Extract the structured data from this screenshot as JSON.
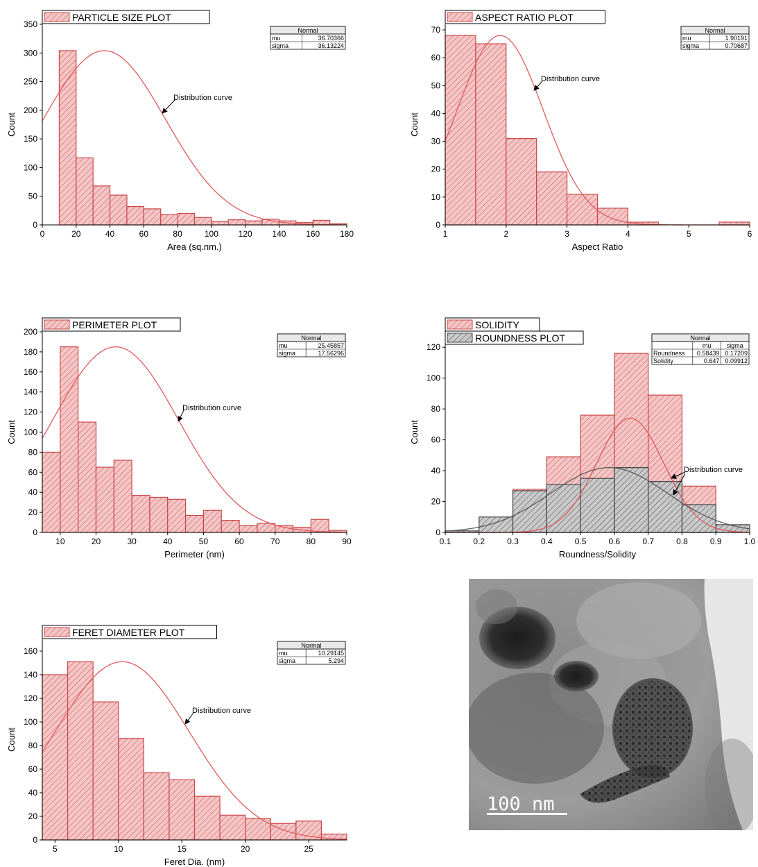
{
  "colors": {
    "bar_fill": "#f4c6c6",
    "bar_stroke": "#c8484a",
    "hatch": "#d76a6c",
    "curve": "#e05a5c",
    "gray_fill": "#c9c9c9",
    "gray_stroke": "#444444",
    "gray_curve": "#5a5a5a"
  },
  "chart_data": [
    {
      "id": "particle-size",
      "type": "bar",
      "legend": [
        "PARTICLE SIZE PLOT"
      ],
      "xlabel": "Area (sq.nm.)",
      "ylabel": "Count",
      "xlim": [
        0,
        180
      ],
      "ylim": [
        0,
        350
      ],
      "xticks": [
        0,
        20,
        40,
        60,
        80,
        100,
        120,
        140,
        160,
        180
      ],
      "yticks": [
        0,
        50,
        100,
        150,
        200,
        250,
        300,
        350
      ],
      "bin_edges": [
        10,
        20,
        30,
        40,
        50,
        60,
        70,
        80,
        90,
        100,
        110,
        120,
        130,
        140,
        150,
        160,
        170,
        180
      ],
      "counts": [
        304,
        117,
        68,
        52,
        32,
        28,
        18,
        20,
        13,
        6,
        9,
        7,
        10,
        7,
        4,
        8,
        2
      ],
      "normal_fit": {
        "mu": 36.70366,
        "sigma": 36.13224,
        "peak": 304
      },
      "stats_table": {
        "header": "Normal",
        "rows": [
          [
            "mu",
            "36.70366"
          ],
          [
            "sigma",
            "36.13224"
          ]
        ]
      },
      "annotation": "Distribution curve"
    },
    {
      "id": "aspect-ratio",
      "type": "bar",
      "legend": [
        "ASPECT RATIO PLOT"
      ],
      "xlabel": "Aspect Ratio",
      "ylabel": "Count",
      "xlim": [
        1,
        6
      ],
      "ylim": [
        0,
        72
      ],
      "xticks": [
        1,
        2,
        3,
        4,
        5,
        6
      ],
      "yticks": [
        0,
        10,
        20,
        30,
        40,
        50,
        60,
        70
      ],
      "bin_edges": [
        1,
        1.5,
        2,
        2.5,
        3,
        3.5,
        4,
        4.5,
        5,
        5.5,
        6
      ],
      "counts": [
        68,
        65,
        31,
        19,
        11,
        6,
        1,
        0,
        0,
        1
      ],
      "normal_fit": {
        "mu": 1.90191,
        "sigma": 0.70687,
        "peak": 68
      },
      "stats_table": {
        "header": "Normal",
        "rows": [
          [
            "mu",
            "1.90191"
          ],
          [
            "sigma",
            "0.70687"
          ]
        ]
      },
      "annotation": "Distribution curve"
    },
    {
      "id": "perimeter",
      "type": "bar",
      "legend": [
        "PERIMETER PLOT"
      ],
      "xlabel": "Perimeter (nm)",
      "ylabel": "Count",
      "xlim": [
        5,
        90
      ],
      "ylim": [
        0,
        200
      ],
      "xticks": [
        10,
        20,
        30,
        40,
        50,
        60,
        70,
        80,
        90
      ],
      "yticks": [
        0,
        20,
        40,
        60,
        80,
        100,
        120,
        140,
        160,
        180,
        200
      ],
      "bin_edges": [
        5,
        10,
        15,
        20,
        25,
        30,
        35,
        40,
        45,
        50,
        55,
        60,
        65,
        70,
        75,
        80,
        85,
        90
      ],
      "counts": [
        80,
        185,
        110,
        65,
        72,
        37,
        35,
        33,
        17,
        22,
        12,
        7,
        9,
        7,
        5,
        13,
        2
      ],
      "normal_fit": {
        "mu": 25.45857,
        "sigma": 17.56296,
        "peak": 185
      },
      "stats_table": {
        "header": "Normal",
        "rows": [
          [
            "mu",
            "25.45857"
          ],
          [
            "sigma",
            "17.56296"
          ]
        ]
      },
      "annotation": "Distribution curve"
    },
    {
      "id": "roundness-solidity",
      "type": "bar",
      "legend": [
        "SOLIDITY",
        "ROUNDNESS PLOT"
      ],
      "xlabel": "Roundness/Solidity",
      "ylabel": "Count",
      "xlim": [
        0.1,
        1.0
      ],
      "ylim": [
        0,
        130
      ],
      "xticks": [
        0.1,
        0.2,
        0.3,
        0.4,
        0.5,
        0.6,
        0.7,
        0.8,
        0.9,
        1.0
      ],
      "xtick_labels": [
        "0.1",
        "0.2",
        "0.3",
        "0.4",
        "0.5",
        "0.6",
        "0.7",
        "0.8",
        "0.9",
        "1.0"
      ],
      "yticks": [
        0,
        20,
        40,
        60,
        80,
        100,
        120
      ],
      "bin_edges": [
        0.1,
        0.2,
        0.3,
        0.4,
        0.5,
        0.6,
        0.7,
        0.8,
        0.9,
        1.0
      ],
      "series": [
        {
          "name": "SOLIDITY",
          "counts": [
            0,
            0,
            28,
            49,
            76,
            116,
            89,
            30,
            0
          ],
          "normal_fit": {
            "mu": 0.647,
            "sigma": 0.09912,
            "peak": 74
          }
        },
        {
          "name": "ROUNDNESS PLOT",
          "counts": [
            1,
            10,
            27,
            31,
            35,
            42,
            33,
            18,
            5
          ],
          "normal_fit": {
            "mu": 0.58439,
            "sigma": 0.17209,
            "peak": 42
          }
        }
      ],
      "stats_table": {
        "header": "Normal",
        "columns": [
          "",
          "mu",
          "sigma"
        ],
        "rows": [
          [
            "Roundness",
            "0.58439",
            "0.17209"
          ],
          [
            "Solidity",
            "0.647",
            "0.09912"
          ]
        ]
      },
      "annotation": "Distribution curve"
    },
    {
      "id": "feret-diameter",
      "type": "bar",
      "legend": [
        "FERET DIAMETER PLOT"
      ],
      "xlabel": "Feret Dia. (nm)",
      "ylabel": "Count",
      "xlim": [
        4,
        28
      ],
      "ylim": [
        0,
        170
      ],
      "xticks": [
        5,
        10,
        15,
        20,
        25
      ],
      "yticks": [
        0,
        20,
        40,
        60,
        80,
        100,
        120,
        140,
        160
      ],
      "bin_edges": [
        4,
        6,
        8,
        10,
        12,
        14,
        16,
        18,
        20,
        22,
        24,
        26,
        28
      ],
      "counts": [
        140,
        151,
        117,
        86,
        57,
        51,
        37,
        21,
        18,
        14,
        16,
        5
      ],
      "normal_fit": {
        "mu": 10.29145,
        "sigma": 5.294,
        "peak": 151
      },
      "stats_table": {
        "header": "Normal",
        "rows": [
          [
            "mu",
            "10.29145"
          ],
          [
            "sigma",
            "5.294"
          ]
        ]
      },
      "annotation": "Distribution curve"
    }
  ],
  "tem_image": {
    "scale_bar_label": "100 nm"
  }
}
